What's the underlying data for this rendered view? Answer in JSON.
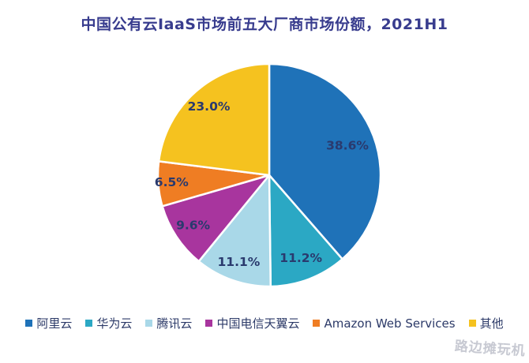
{
  "title": "中国公有云IaaS市场前五大厂商市场份额，2021H1",
  "watermark": "路边摊玩机",
  "colors": {
    "title_text": "#383c8e",
    "data_label_text": "#2a3a6e",
    "legend_text": "#2c3a68",
    "slice_divider": "#ffffff",
    "watermark_text": "#c7c9d2"
  },
  "chart_data": {
    "type": "pie",
    "title": "中国公有云IaaS市场前五大厂商市场份额，2021H1",
    "start_angle_deg": 0,
    "direction": "clockwise",
    "legend_position": "bottom",
    "value_suffix": "%",
    "slices": [
      {
        "label": "阿里云",
        "value": 38.6,
        "label_text": "38.6%",
        "color": "#1F72B8",
        "label_r": 0.75
      },
      {
        "label": "华为云",
        "value": 11.2,
        "label_text": "11.2%",
        "color": "#2BA8C4",
        "label_r": 0.8
      },
      {
        "label": "腾讯云",
        "value": 11.1,
        "label_text": "11.1%",
        "color": "#A9D8E8",
        "label_r": 0.83
      },
      {
        "label": "中国电信天翼云",
        "value": 9.6,
        "label_text": "9.6%",
        "color": "#A8359E",
        "label_r": 0.82
      },
      {
        "label": "Amazon Web Services",
        "value": 6.5,
        "label_text": "6.5%",
        "color": "#EF7D23",
        "label_r": 0.88
      },
      {
        "label": "其他",
        "value": 23.0,
        "label_text": "23.0%",
        "color": "#F5C21F",
        "label_r": 0.82
      }
    ]
  }
}
